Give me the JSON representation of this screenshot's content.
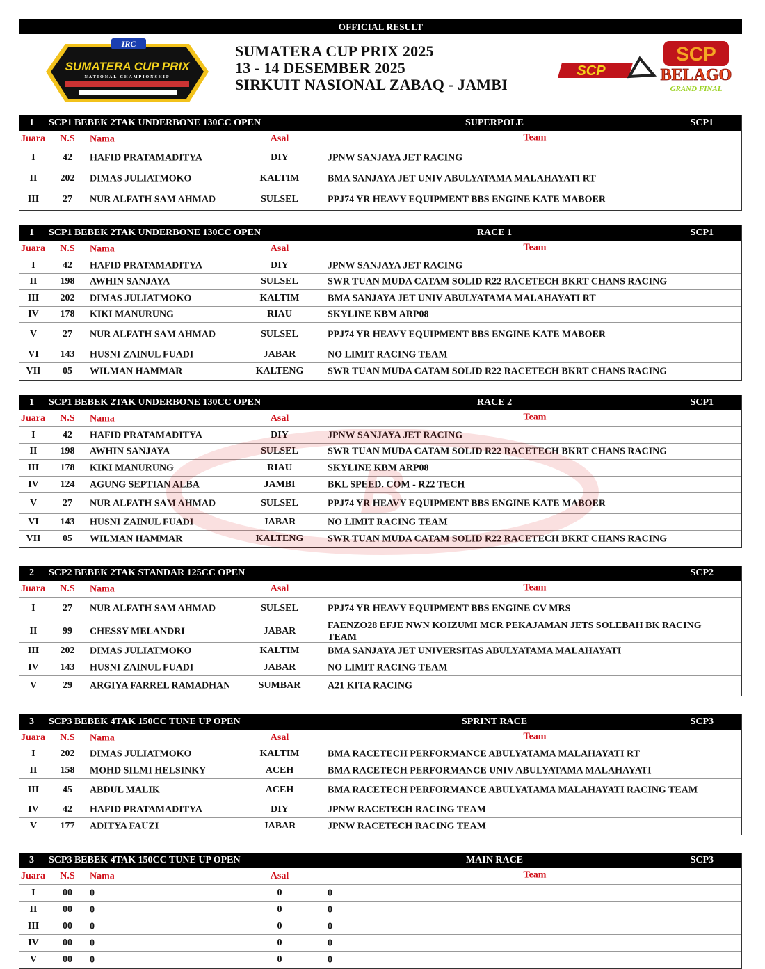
{
  "top_bar": "OFFICIAL RESULT",
  "event": {
    "title": "SUMATERA CUP PRIX 2025",
    "dates": "13 - 14 DESEMBER 2025",
    "venue": "SIRKUIT NASIONAL ZABAQ - JAMBI"
  },
  "logos": {
    "left": "SUMATERA CUP PRIX",
    "left_sub": "NATIONAL CHAMPIONSHIP",
    "left_sponsor": "IRC",
    "right1": "SCP",
    "right2": "BELAGO",
    "right2_sub": "GRAND FINAL"
  },
  "columns": {
    "juara": "Juara",
    "ns": "N.S",
    "nama": "Nama",
    "asal": "Asal",
    "team": "Team"
  },
  "header_color": "#000000",
  "column_header_color": "#d0101a",
  "sections": [
    {
      "num": "1",
      "class": "SCP1 BEBEK 2TAK UNDERBONE 130CC OPEN",
      "stage": "SUPERPOLE",
      "code": "SCP1",
      "rows": [
        [
          "I",
          "42",
          "HAFID PRATAMADITYA",
          "DIY",
          "JPNW SANJAYA JET RACING"
        ],
        [
          "II",
          "202",
          "DIMAS JULIATMOKO",
          "KALTIM",
          "BMA SANJAYA JET UNIV ABULYATAMA MALAHAYATI RT"
        ],
        [
          "III",
          "27",
          "NUR ALFATH SAM AHMAD",
          "SULSEL",
          "PPJ74 YR HEAVY EQUIPMENT BBS ENGINE KATE MABOER"
        ]
      ]
    },
    {
      "num": "1",
      "class": "SCP1 BEBEK 2TAK UNDERBONE 130CC OPEN",
      "stage": "RACE 1",
      "code": "SCP1",
      "rows": [
        [
          "I",
          "42",
          "HAFID PRATAMADITYA",
          "DIY",
          "JPNW SANJAYA JET RACING"
        ],
        [
          "II",
          "198",
          "AWHIN SANJAYA",
          "SULSEL",
          "SWR TUAN MUDA CATAM SOLID R22 RACETECH BKRT CHANS RACING"
        ],
        [
          "III",
          "202",
          "DIMAS JULIATMOKO",
          "KALTIM",
          "BMA SANJAYA JET UNIV ABULYATAMA MALAHAYATI RT"
        ],
        [
          "IV",
          "178",
          "KIKI MANURUNG",
          "RIAU",
          "SKYLINE KBM ARP08"
        ],
        [
          "V",
          "27",
          "NUR ALFATH SAM AHMAD",
          "SULSEL",
          "PPJ74 YR HEAVY EQUIPMENT BBS ENGINE KATE MABOER"
        ],
        [
          "VI",
          "143",
          "HUSNI ZAINUL FUADI",
          "JABAR",
          "NO LIMIT RACING TEAM"
        ],
        [
          "VII",
          "05",
          "WILMAN HAMMAR",
          "KALTENG",
          "SWR TUAN MUDA CATAM SOLID R22 RACETECH BKRT CHANS RACING"
        ]
      ]
    },
    {
      "num": "1",
      "class": "SCP1 BEBEK 2TAK UNDERBONE 130CC OPEN",
      "stage": "RACE 2",
      "code": "SCP1",
      "rows": [
        [
          "I",
          "42",
          "HAFID PRATAMADITYA",
          "DIY",
          "JPNW SANJAYA JET RACING"
        ],
        [
          "II",
          "198",
          "AWHIN SANJAYA",
          "SULSEL",
          "SWR TUAN MUDA CATAM SOLID R22 RACETECH BKRT CHANS RACING"
        ],
        [
          "III",
          "178",
          "KIKI MANURUNG",
          "RIAU",
          "SKYLINE KBM ARP08"
        ],
        [
          "IV",
          "124",
          "AGUNG SEPTIAN ALBA",
          "JAMBI",
          "BKL SPEED. COM - R22 TECH"
        ],
        [
          "V",
          "27",
          "NUR ALFATH SAM AHMAD",
          "SULSEL",
          "PPJ74 YR HEAVY EQUIPMENT BBS ENGINE KATE MABOER"
        ],
        [
          "VI",
          "143",
          "HUSNI ZAINUL FUADI",
          "JABAR",
          "NO LIMIT RACING TEAM"
        ],
        [
          "VII",
          "05",
          "WILMAN HAMMAR",
          "KALTENG",
          "SWR TUAN MUDA CATAM SOLID R22 RACETECH BKRT CHANS RACING"
        ]
      ]
    },
    {
      "num": "2",
      "class": "SCP2 BEBEK 2TAK STANDAR 125CC OPEN",
      "stage": "",
      "code": "SCP2",
      "rows": [
        [
          "I",
          "27",
          "NUR ALFATH SAM AHMAD",
          "SULSEL",
          "PPJ74 YR HEAVY EQUIPMENT BBS ENGINE CV MRS"
        ],
        [
          "II",
          "99",
          "CHESSY MELANDRI",
          "JABAR",
          "FAENZO28 EFJE NWN KOIZUMI MCR PEKAJAMAN JETS SOLEBAH BK RACING TEAM"
        ],
        [
          "III",
          "202",
          "DIMAS JULIATMOKO",
          "KALTIM",
          "BMA SANJAYA JET UNIVERSITAS ABULYATAMA MALAHAYATI"
        ],
        [
          "IV",
          "143",
          "HUSNI ZAINUL FUADI",
          "JABAR",
          "NO LIMIT RACING TEAM"
        ],
        [
          "V",
          "29",
          "ARGIYA FARREL RAMADHAN",
          "SUMBAR",
          "A21 KITA RACING"
        ]
      ]
    },
    {
      "num": "3",
      "class": "SCP3 BEBEK 4TAK 150CC TUNE UP OPEN",
      "stage": "SPRINT RACE",
      "code": "SCP3",
      "rows": [
        [
          "I",
          "202",
          "DIMAS JULIATMOKO",
          "KALTIM",
          "BMA RACETECH PERFORMANCE ABULYATAMA MALAHAYATI RT"
        ],
        [
          "II",
          "158",
          "MOHD SILMI HELSINKY",
          "ACEH",
          "BMA RACETECH PERFORMANCE UNIV ABULYATAMA MALAHAYATI"
        ],
        [
          "III",
          "45",
          "ABDUL MALIK",
          "ACEH",
          "BMA RACETECH PERFORMANCE ABULYATAMA MALAHAYATI RACING TEAM"
        ],
        [
          "IV",
          "42",
          "HAFID PRATAMADITYA",
          "DIY",
          "JPNW RACETECH RACING TEAM"
        ],
        [
          "V",
          "177",
          "ADITYA FAUZI",
          "JABAR",
          "JPNW RACETECH RACING TEAM"
        ]
      ]
    },
    {
      "num": "3",
      "class": "SCP3 BEBEK 4TAK 150CC TUNE UP OPEN",
      "stage": "MAIN RACE",
      "code": "SCP3",
      "rows": [
        [
          "I",
          "00",
          "0",
          "0",
          "0"
        ],
        [
          "II",
          "00",
          "0",
          "0",
          "0"
        ],
        [
          "III",
          "00",
          "0",
          "0",
          "0"
        ],
        [
          "IV",
          "00",
          "0",
          "0",
          "0"
        ],
        [
          "V",
          "00",
          "0",
          "0",
          "0"
        ]
      ]
    }
  ]
}
